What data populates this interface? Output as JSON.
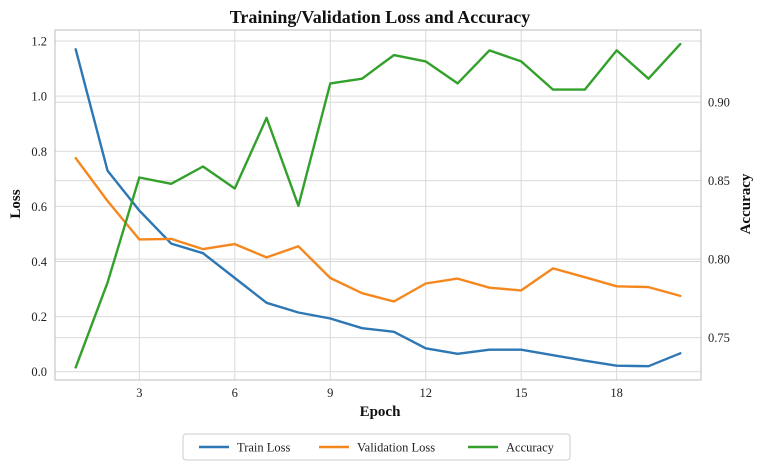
{
  "chart_data": {
    "type": "line",
    "title": "Training/Validation Loss and Accuracy",
    "xlabel": "Epoch",
    "ylabel": "Loss",
    "y2label": "Accuracy",
    "x": [
      1,
      2,
      3,
      4,
      5,
      6,
      7,
      8,
      9,
      10,
      11,
      12,
      13,
      14,
      15,
      16,
      17,
      18,
      19,
      20
    ],
    "xlim": [
      0.35,
      20.65
    ],
    "xticks": [
      3,
      6,
      9,
      12,
      15,
      18
    ],
    "ylim": [
      -0.03,
      1.24
    ],
    "yticks": [
      0.0,
      0.2,
      0.4,
      0.6,
      0.8,
      1.0,
      1.2
    ],
    "y2lim": [
      0.723,
      0.946
    ],
    "y2ticks": [
      0.75,
      0.8,
      0.85,
      0.9
    ],
    "grid": true,
    "legend_position": "bottom-center",
    "series": [
      {
        "name": "Train Loss",
        "axis": "left",
        "color": "#2d77b4",
        "values": [
          1.17,
          0.73,
          0.585,
          0.465,
          0.43,
          0.34,
          0.25,
          0.215,
          0.193,
          0.158,
          0.145,
          0.085,
          0.065,
          0.08,
          0.08,
          0.06,
          0.04,
          0.022,
          0.02,
          0.067
        ]
      },
      {
        "name": "Validation Loss",
        "axis": "left",
        "color": "#f5871f",
        "values": [
          0.775,
          0.62,
          0.48,
          0.482,
          0.445,
          0.463,
          0.415,
          0.455,
          0.34,
          0.285,
          0.255,
          0.32,
          0.338,
          0.305,
          0.295,
          0.375,
          0.343,
          0.31,
          0.307,
          0.275
        ]
      },
      {
        "name": "Accuracy",
        "axis": "right",
        "color": "#33a02c",
        "values": [
          0.731,
          0.785,
          0.852,
          0.848,
          0.859,
          0.845,
          0.89,
          0.834,
          0.912,
          0.915,
          0.93,
          0.926,
          0.912,
          0.933,
          0.926,
          0.908,
          0.908,
          0.933,
          0.915,
          0.937
        ]
      }
    ]
  }
}
